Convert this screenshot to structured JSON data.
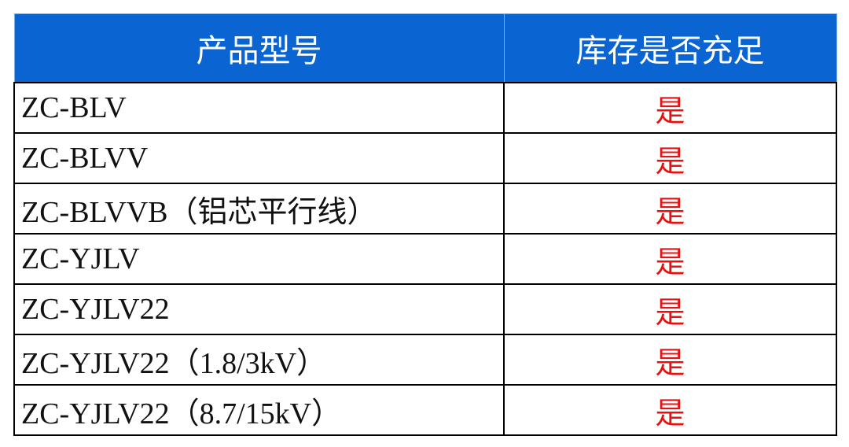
{
  "headers": [
    "产品型号",
    "库存是否充足"
  ],
  "colors": {
    "header_bg": "#0a64d2",
    "header_text": "#ffffff",
    "yes_text": "#e81010"
  },
  "rows": [
    {
      "model": "ZC-BLV",
      "in_stock": "是"
    },
    {
      "model": "ZC-BLVV",
      "in_stock": "是"
    },
    {
      "model": "ZC-BLVVB（铝芯平行线）",
      "in_stock": "是"
    },
    {
      "model": "ZC-YJLV",
      "in_stock": "是"
    },
    {
      "model": "ZC-YJLV22",
      "in_stock": "是"
    },
    {
      "model": "ZC-YJLV22（1.8/3kV）",
      "in_stock": "是"
    },
    {
      "model": "ZC-YJLV22（8.7/15kV）",
      "in_stock": "是"
    }
  ]
}
